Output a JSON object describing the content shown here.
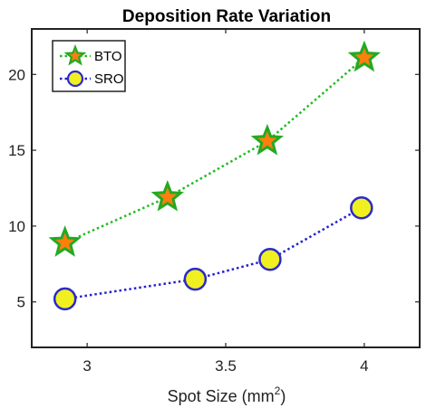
{
  "chart_data": {
    "type": "line",
    "title": "Deposition Rate Variation",
    "xlabel": "Spot Size (mm",
    "xlabel_sup": "2",
    "xlabel_close": ")",
    "ylabel": "",
    "xlim": [
      2.8,
      4.2
    ],
    "ylim": [
      2,
      23
    ],
    "xticks": [
      3,
      3.5,
      4
    ],
    "xtick_labels": [
      "3",
      "3.5",
      "4"
    ],
    "yticks": [
      5,
      10,
      15,
      20
    ],
    "ytick_labels": [
      "5",
      "10",
      "15",
      "20"
    ],
    "grid": false,
    "legend_position": "top-left",
    "series": [
      {
        "name": "BTO",
        "x": [
          2.92,
          3.29,
          3.65,
          4.0
        ],
        "values": [
          8.9,
          11.9,
          15.6,
          21.1
        ],
        "line_color": "#22bb22",
        "marker": "star",
        "marker_fill": "#ff7f0e",
        "marker_edge": "#22aa22"
      },
      {
        "name": "SRO",
        "x": [
          2.92,
          3.39,
          3.66,
          3.99
        ],
        "values": [
          5.2,
          6.5,
          7.8,
          11.2
        ],
        "line_color": "#2222cc",
        "marker": "circle",
        "marker_fill": "#f0f020",
        "marker_edge": "#2a2acc"
      }
    ]
  }
}
